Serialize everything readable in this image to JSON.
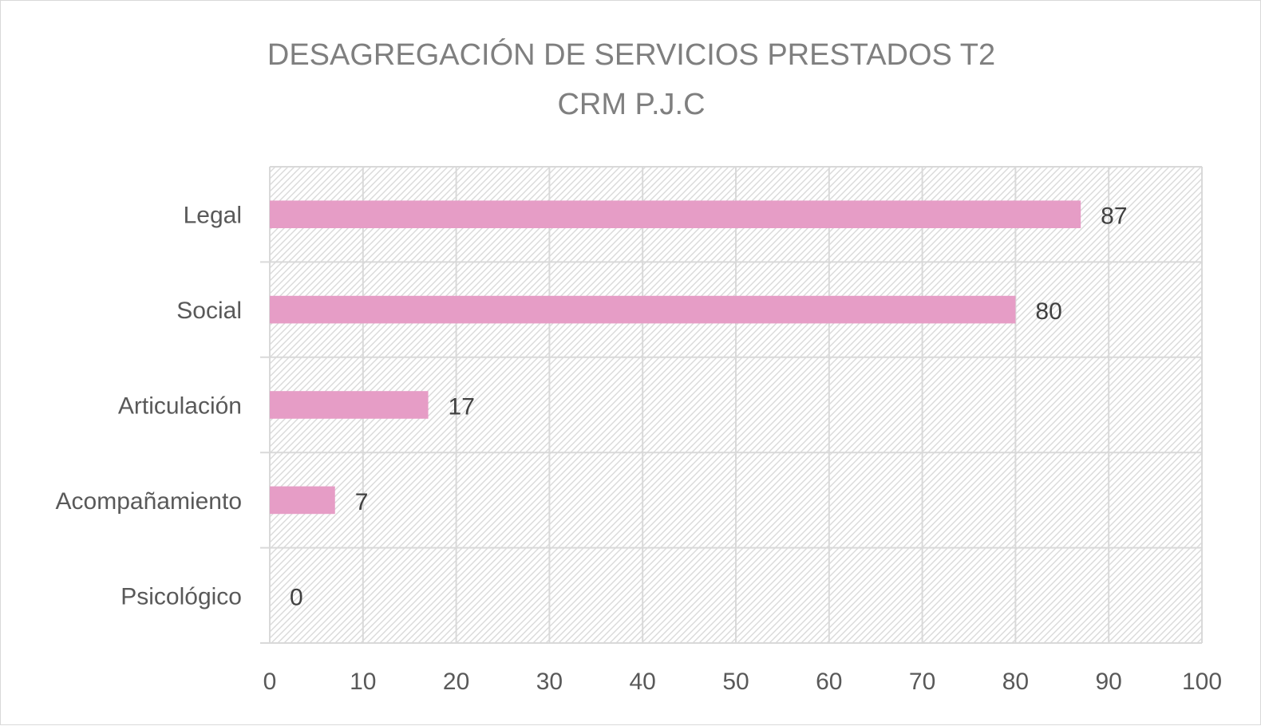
{
  "chart_data": {
    "type": "bar",
    "orientation": "horizontal",
    "title": [
      "DESAGREGACIÓN DE SERVICIOS PRESTADOS T2",
      "CRM P.J.C"
    ],
    "categories": [
      "Legal",
      "Social",
      "Articulación",
      "Acompañamiento",
      "Psicológico"
    ],
    "values": [
      87,
      80,
      17,
      7,
      0
    ],
    "xlim": [
      0,
      100
    ],
    "x_ticks": [
      "0",
      "10",
      "20",
      "30",
      "40",
      "50",
      "60",
      "70",
      "80",
      "90",
      "100"
    ],
    "data_labels": true,
    "grid": true,
    "legend": "none",
    "colors": {
      "bar": "#e69dc6",
      "grid": "#d9d9d9",
      "hatch": "#d9d9d9",
      "title": "#7f7f7f",
      "text": "#595959"
    }
  }
}
